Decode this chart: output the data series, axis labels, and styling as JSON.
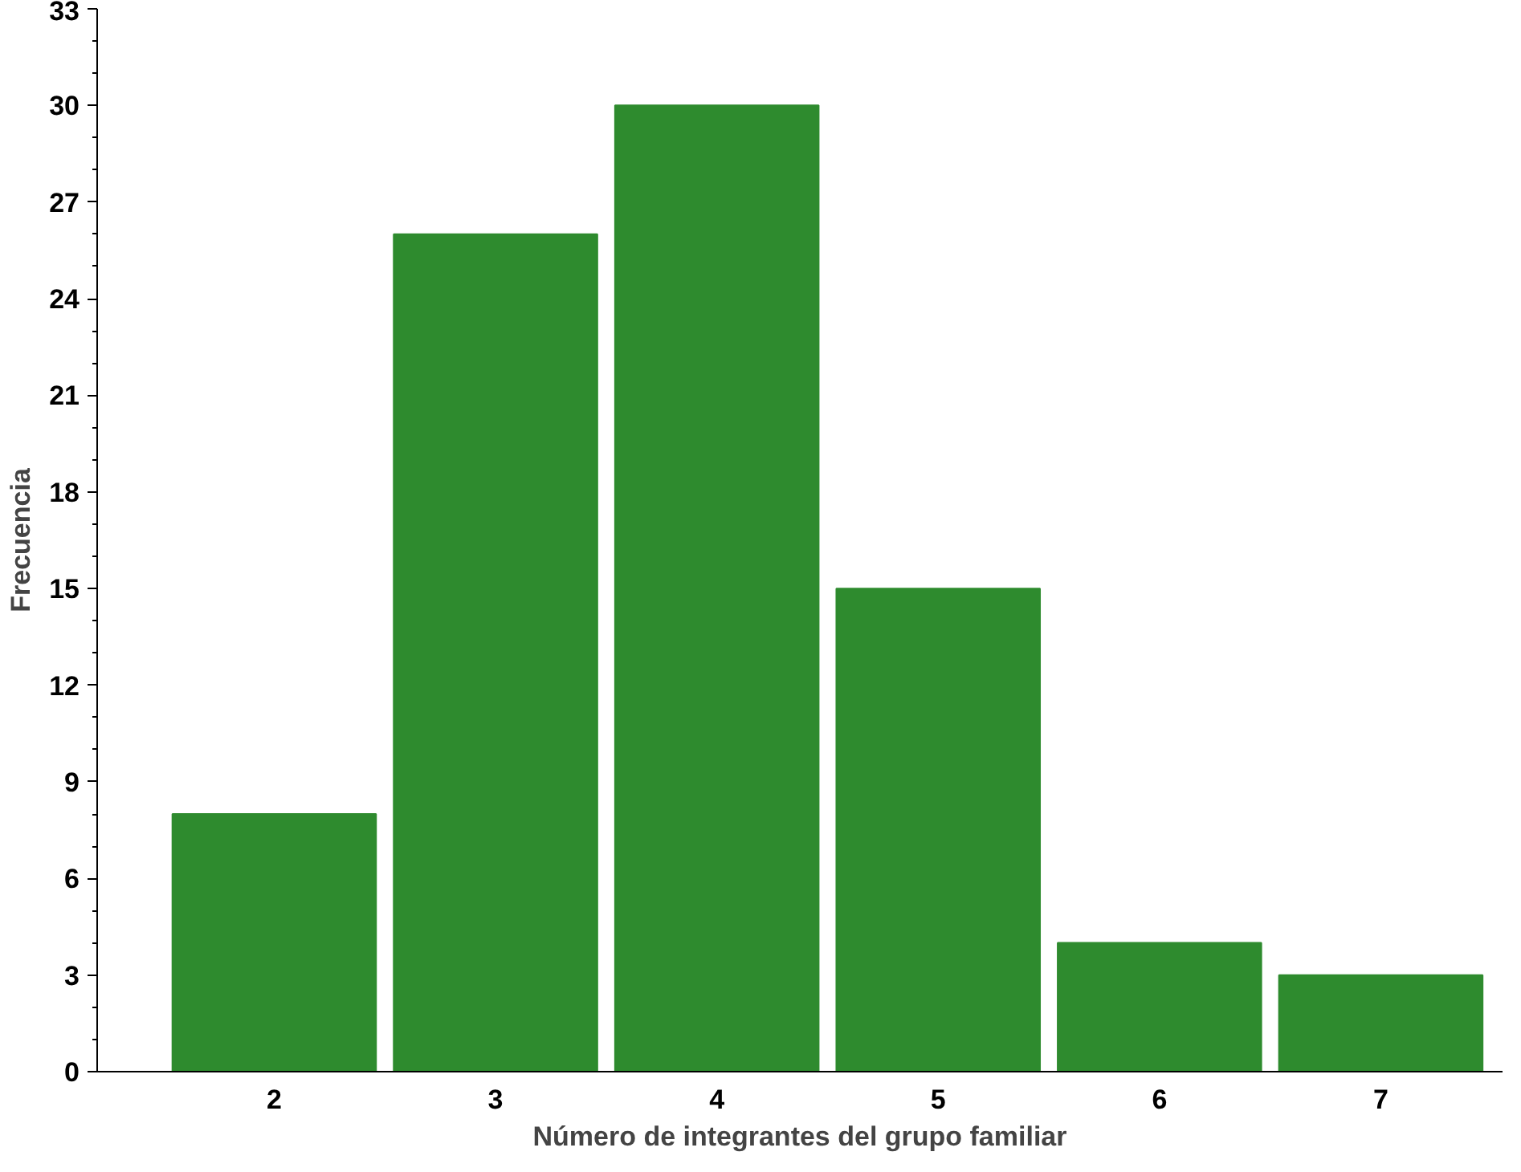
{
  "chart_data": {
    "type": "bar",
    "xlabel": "Número de integrantes del grupo familiar",
    "ylabel": "Frecuencia",
    "categories": [
      "2",
      "3",
      "4",
      "5",
      "6",
      "7"
    ],
    "values": [
      8,
      26,
      30,
      15,
      4,
      3
    ],
    "color": "#2e8b2e",
    "ylim": [
      0,
      33
    ],
    "yticks": [
      0,
      3,
      6,
      9,
      12,
      15,
      18,
      21,
      24,
      27,
      30,
      33
    ],
    "grid": false
  }
}
